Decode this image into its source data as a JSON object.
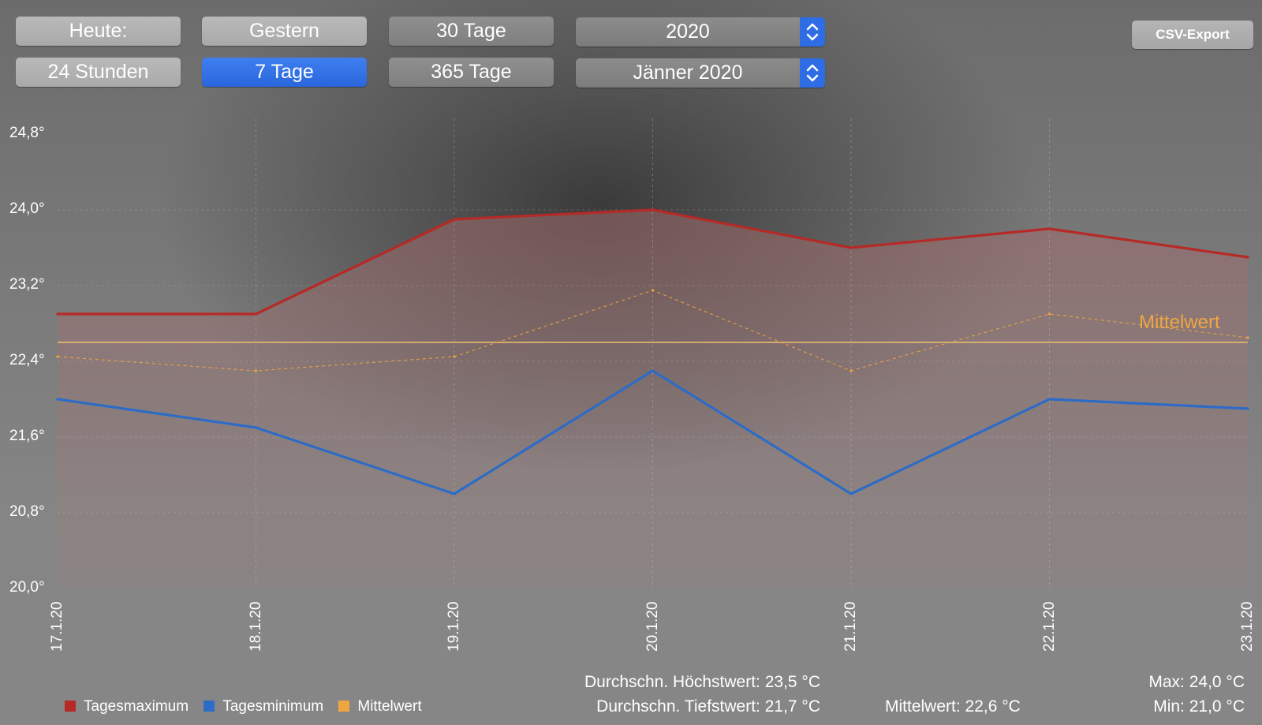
{
  "toolbar": {
    "buttons_row1": [
      "Heute:",
      "Gestern",
      "30 Tage"
    ],
    "buttons_row2": [
      "24 Stunden",
      "7 Tage",
      "365 Tage"
    ],
    "active_button": "7 Tage",
    "year_select": "2020",
    "month_select": "Jänner 2020",
    "csv_export": "CSV-Export"
  },
  "chart_data": {
    "type": "line",
    "x": [
      "17.1.20",
      "18.1.20",
      "19.1.20",
      "20.1.20",
      "21.1.20",
      "22.1.20",
      "23.1.20"
    ],
    "ylim": [
      20.0,
      24.8
    ],
    "yticks": [
      "24,8°",
      "24,0°",
      "23,2°",
      "22,4°",
      "21,6°",
      "20,8°",
      "20,0°"
    ],
    "ytick_values": [
      24.8,
      24.0,
      23.2,
      22.4,
      21.6,
      20.8,
      20.0
    ],
    "grid": true,
    "series": [
      {
        "name": "Tagesmaximum",
        "color": "#b52a27",
        "values": [
          22.9,
          22.9,
          23.9,
          24.0,
          23.6,
          23.8,
          23.5
        ]
      },
      {
        "name": "Tagesminimum",
        "color": "#2c6cc6",
        "values": [
          22.0,
          21.7,
          21.0,
          22.3,
          21.0,
          22.0,
          21.9
        ]
      },
      {
        "name": "Mittelwert",
        "color": "#f0a640",
        "values": [
          22.45,
          22.3,
          22.45,
          23.15,
          22.3,
          22.9,
          22.65
        ]
      }
    ],
    "mean_line": {
      "value": 22.6,
      "label": "Mittelwert",
      "color": "#f0c070"
    },
    "legend_position": "bottom-left"
  },
  "stats": {
    "avg_high": "Durchschn. Höchstwert: 23,5 °C",
    "avg_low": "Durchschn. Tiefstwert: 21,7 °C",
    "mean": "Mittelwert:  22,6 °C",
    "max": "Max: 24,0 °C",
    "min": "Min: 21,0 °C"
  }
}
